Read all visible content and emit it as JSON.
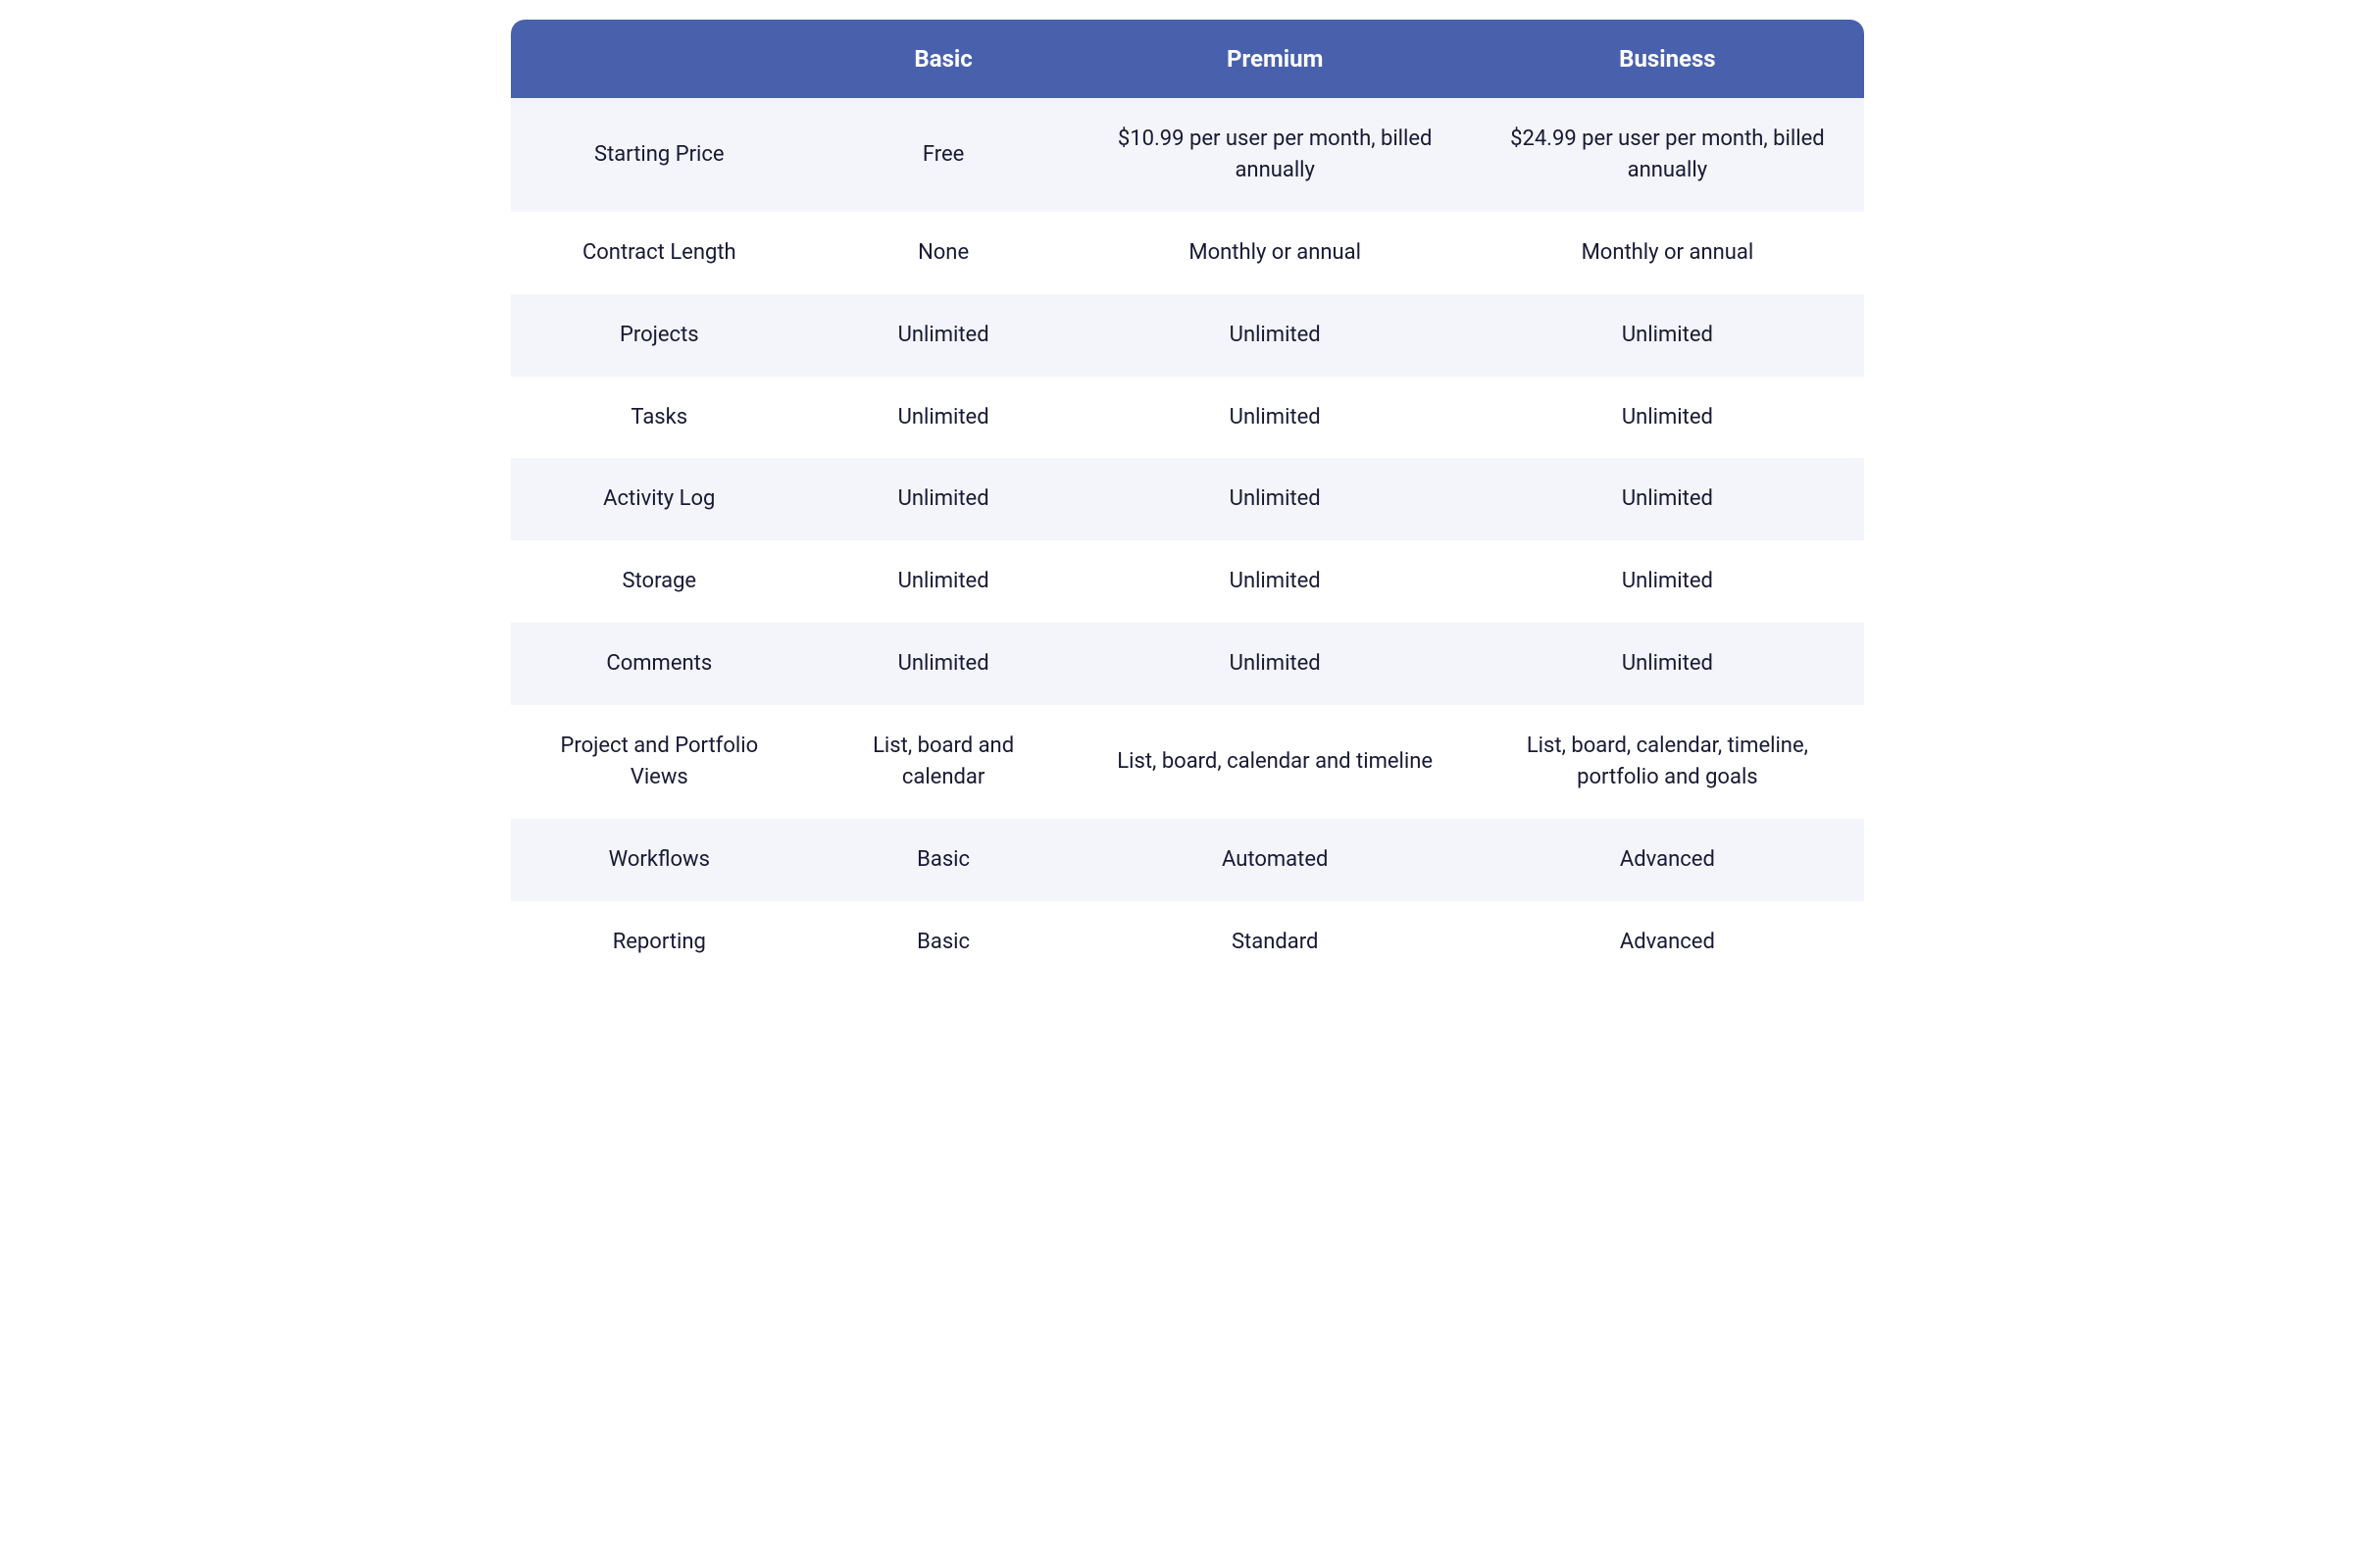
{
  "table": {
    "header_bg": "#4961ac",
    "header_fg": "#ffffff",
    "row_alt_bg": "#f4f5fa",
    "row_bg": "#ffffff",
    "text_color": "#191935",
    "header_fontsize": 24,
    "cell_fontsize": 22,
    "border_radius": 14,
    "columns": [
      "",
      "Basic",
      "Premium",
      "Business"
    ],
    "col_widths_pct": [
      22,
      20,
      29,
      29
    ],
    "rows": [
      {
        "feature": "Starting Price",
        "basic": "Free",
        "premium": "$10.99 per user per month, billed annually",
        "business": "$24.99 per user per month, billed annually"
      },
      {
        "feature": "Contract Length",
        "basic": "None",
        "premium": "Monthly or annual",
        "business": "Monthly or annual"
      },
      {
        "feature": "Projects",
        "basic": "Unlimited",
        "premium": "Unlimited",
        "business": "Unlimited"
      },
      {
        "feature": "Tasks",
        "basic": "Unlimited",
        "premium": "Unlimited",
        "business": "Unlimited"
      },
      {
        "feature": "Activity Log",
        "basic": "Unlimited",
        "premium": "Unlimited",
        "business": "Unlimited"
      },
      {
        "feature": "Storage",
        "basic": "Unlimited",
        "premium": "Unlimited",
        "business": "Unlimited"
      },
      {
        "feature": "Comments",
        "basic": "Unlimited",
        "premium": "Unlimited",
        "business": "Unlimited"
      },
      {
        "feature": "Project and Portfolio Views",
        "basic": "List, board and calendar",
        "premium": "List, board, calendar and timeline",
        "business": "List, board, calendar, timeline, portfolio and goals"
      },
      {
        "feature": "Workflows",
        "basic": "Basic",
        "premium": "Automated",
        "business": "Advanced"
      },
      {
        "feature": "Reporting",
        "basic": "Basic",
        "premium": "Standard",
        "business": "Advanced"
      }
    ]
  }
}
